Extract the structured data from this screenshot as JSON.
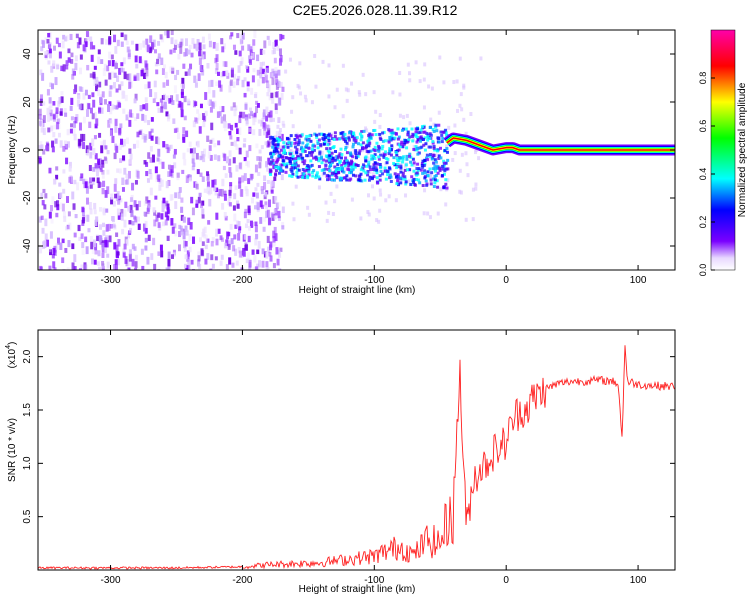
{
  "title": "C2E5.2026.028.11.39.R12",
  "chart_data": [
    {
      "type": "heatmap",
      "title": "",
      "xlabel": "Height of straight line (km)",
      "ylabel": "Frequency (Hz)",
      "xlim": [
        -355,
        128
      ],
      "ylim": [
        -50,
        50
      ],
      "xticks": [
        -300,
        -200,
        -100,
        0,
        100
      ],
      "yticks": [
        -40,
        -20,
        0,
        20,
        40
      ],
      "colorbar": {
        "label": "Normalized spectral amplitude",
        "range": [
          0,
          1
        ],
        "ticks": [
          "0.0",
          "0.2",
          "0.4",
          "0.6",
          "0.8"
        ],
        "colormap": [
          "#ffffff",
          "#7a00ff",
          "#0000ff",
          "#00ffff",
          "#00ff00",
          "#ffff00",
          "#ff0000",
          "#ff00aa"
        ]
      },
      "regions": [
        {
          "x_range": [
            -355,
            -180
          ],
          "freq_range": [
            -50,
            50
          ],
          "amplitude": 0.1,
          "description_color": "#7a00ff"
        },
        {
          "x_range": [
            -180,
            -45
          ],
          "freq_range": [
            -15,
            12
          ],
          "amplitude": 0.2
        },
        {
          "x_range": [
            -40,
            128
          ],
          "freq_range": [
            -2,
            5
          ],
          "amplitude": 1.0
        }
      ],
      "ridge": [
        [
          -45,
          3
        ],
        [
          -40,
          5
        ],
        [
          -30,
          4
        ],
        [
          -20,
          2
        ],
        [
          -10,
          0
        ],
        [
          0,
          1
        ],
        [
          5,
          1
        ],
        [
          10,
          0
        ],
        [
          128,
          0
        ]
      ]
    },
    {
      "type": "line",
      "title": "",
      "xlabel": "Height of straight line (km)",
      "ylabel": "SNR (10 * v/v)",
      "yscale_label": "(x10",
      "yscale_exp": "4",
      "y_multiplier": 10000,
      "xlim": [
        -355,
        128
      ],
      "ylim": [
        0,
        2.25
      ],
      "xticks": [
        -300,
        -200,
        -100,
        0,
        100
      ],
      "yticks": [
        "0.5",
        "1.0",
        "1.5",
        "2.0"
      ],
      "color": "#ff2020",
      "series": [
        {
          "x": [
            -355,
            -250,
            -200,
            -180,
            -160,
            -140,
            -120,
            -100,
            -90,
            -80,
            -70,
            -60,
            -50,
            -45,
            -40,
            -35,
            -33,
            -30,
            -25,
            -20,
            -15,
            -10,
            -5,
            0,
            5,
            10,
            15,
            20,
            30,
            40,
            50,
            60,
            70,
            80,
            85,
            88,
            90,
            92,
            95,
            100,
            110,
            128
          ],
          "y": [
            0.02,
            0.02,
            0.03,
            0.05,
            0.06,
            0.07,
            0.1,
            0.13,
            0.18,
            0.22,
            0.14,
            0.28,
            0.25,
            0.45,
            0.6,
            1.9,
            1.1,
            0.4,
            0.85,
            0.95,
            1.0,
            1.1,
            1.15,
            1.2,
            1.4,
            1.5,
            1.5,
            1.6,
            1.7,
            1.75,
            1.77,
            1.77,
            1.78,
            1.77,
            1.75,
            1.2,
            2.15,
            1.75,
            1.76,
            1.74,
            1.73,
            1.72
          ]
        }
      ]
    }
  ]
}
